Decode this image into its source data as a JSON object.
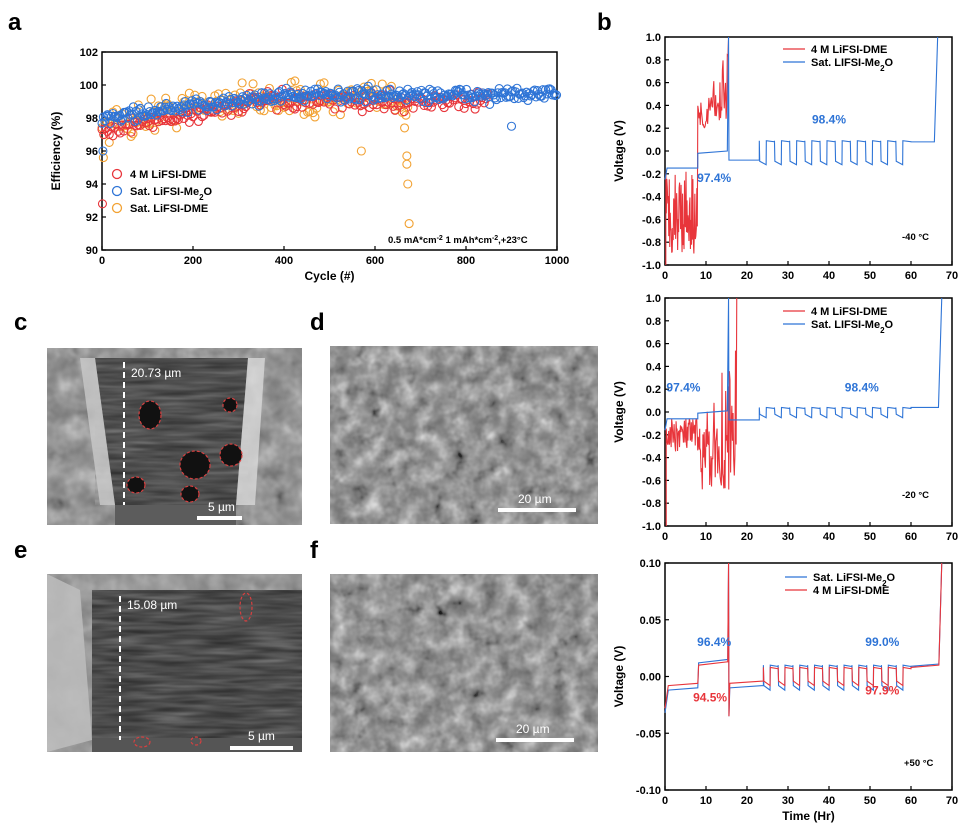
{
  "colors": {
    "red": "#e8353b",
    "blue": "#2e74d6",
    "orange": "#f2a233",
    "ann_blue": "#2e74d6",
    "ann_red": "#e8353b"
  },
  "panel_labels": [
    "a",
    "b",
    "c",
    "d",
    "e",
    "f"
  ],
  "sem": {
    "c": {
      "depth": "20.73 µm",
      "scale": "5 µm"
    },
    "d": {
      "scale": "20 µm"
    },
    "e": {
      "depth": "15.08 µm",
      "scale": "5 µm"
    },
    "f": {
      "scale": "20 µm"
    }
  },
  "chart_data": [
    {
      "id": "a",
      "type": "scatter",
      "xlabel": "Cycle (#)",
      "ylabel": "Efficiency (%)",
      "xlim": [
        0,
        1000
      ],
      "ylim": [
        90,
        102
      ],
      "xticks": [
        "0",
        "200",
        "400",
        "600",
        "800",
        "1000"
      ],
      "yticks": [
        "90",
        "92",
        "94",
        "96",
        "98",
        "100",
        "102"
      ],
      "condition_text": "0.5 mA*cm-2 1 mAh*cm-2,+23°C",
      "legend": [
        "4 M LiFSI-DME",
        "Sat. LiFSI-Me2O",
        "Sat. LiFSI-DME"
      ],
      "series": [
        {
          "name": "4 M LiFSI-DME",
          "color": "#e8353b",
          "cycles": [
            0,
            850
          ],
          "mean_start": 97.2,
          "mean_end": 99.0,
          "outliers": [
            [
              1,
              92.8
            ]
          ]
        },
        {
          "name": "Sat. LiFSI-Me2O",
          "color": "#2e74d6",
          "cycles": [
            0,
            1000
          ],
          "mean_start": 98.0,
          "mean_end": 99.4,
          "outliers": [
            [
              2,
              96.0
            ],
            [
              900,
              97.5
            ]
          ]
        },
        {
          "name": "Sat. LiFSI-DME",
          "color": "#f2a233",
          "cycles": [
            0,
            675
          ],
          "mean_start": 97.5,
          "mean_end": 99.1,
          "outliers": [
            [
              3,
              95.6
            ],
            [
              570,
              96.0
            ],
            [
              670,
              95.7
            ],
            [
              670,
              95.2
            ],
            [
              672,
              94.0
            ],
            [
              675,
              91.6
            ],
            [
              665,
              97.4
            ]
          ]
        }
      ]
    },
    {
      "id": "b1",
      "type": "line",
      "ylabel": "Voltage (V)",
      "xlim": [
        0,
        70
      ],
      "ylim": [
        -1.0,
        1.0
      ],
      "xticks": [
        "0",
        "10",
        "20",
        "30",
        "40",
        "50",
        "60",
        "70"
      ],
      "yticks": [
        "-1.0",
        "-0.8",
        "-0.6",
        "-0.4",
        "-0.2",
        "0.0",
        "0.2",
        "0.4",
        "0.6",
        "0.8",
        "1.0"
      ],
      "legend": [
        "4 M LiFSI-DME",
        "Sat. LIFSI-Me2O"
      ],
      "temperature": "-40 °C",
      "annotations": [
        {
          "text": "97.4%",
          "x": 12.0,
          "y": -0.27,
          "color": "#2e74d6"
        },
        {
          "text": "98.4%",
          "x": 40.0,
          "y": 0.24,
          "color": "#2e74d6"
        }
      ],
      "series": [
        {
          "name": "4 M LiFSI-DME",
          "color": "#e8353b",
          "plating_x": [
            0.2,
            8.0
          ],
          "plating_v_range": [
            -0.9,
            -0.15
          ],
          "stripping_x": [
            8.0,
            15.5
          ],
          "stripping_v_range": [
            0.2,
            1.0
          ]
        },
        {
          "name": "Sat. LIFSI-Me2O",
          "color": "#2e74d6",
          "plating_v": -0.15,
          "plating_x": [
            0,
            8
          ],
          "stripping_v": -0.02,
          "stripping_x": [
            8,
            15.5
          ],
          "cycling_x": [
            23,
            60
          ],
          "cycling_v": [
            -0.12,
            0.09
          ],
          "cycles": 10,
          "final_v": 0.08,
          "rise_x": 66.5
        }
      ]
    },
    {
      "id": "b2",
      "type": "line",
      "ylabel": "Voltage (V)",
      "xlim": [
        0,
        70
      ],
      "ylim": [
        -1.0,
        1.0
      ],
      "xticks": [
        "0",
        "10",
        "20",
        "30",
        "40",
        "50",
        "60",
        "70"
      ],
      "yticks": [
        "-1.0",
        "-0.8",
        "-0.6",
        "-0.4",
        "-0.2",
        "0.0",
        "0.2",
        "0.4",
        "0.6",
        "0.8",
        "1.0"
      ],
      "legend": [
        "4 M LiFSI-DME",
        "Sat. LIFSI-Me2O"
      ],
      "temperature": "-20 °C",
      "annotations": [
        {
          "text": "97.4%",
          "x": 4.5,
          "y": 0.18,
          "color": "#2e74d6"
        },
        {
          "text": "98.4%",
          "x": 48.0,
          "y": 0.18,
          "color": "#2e74d6"
        }
      ],
      "series": [
        {
          "name": "4 M LiFSI-DME",
          "color": "#e8353b",
          "plating_x": [
            0.3,
            8.5
          ],
          "plating_v_range": [
            -0.35,
            -0.05
          ],
          "stripping_x": [
            8.5,
            17.5
          ],
          "stripping_v_range": [
            -0.7,
            1.0
          ]
        },
        {
          "name": "Sat. LIFSI-Me2O",
          "color": "#2e74d6",
          "plating_v": -0.06,
          "plating_x": [
            0,
            8
          ],
          "stripping_v": -0.01,
          "stripping_x": [
            8,
            15.5
          ],
          "cycling_x": [
            23,
            60
          ],
          "cycling_v": [
            -0.05,
            0.04
          ],
          "cycles": 10,
          "final_v": 0.04,
          "rise_x": 67.5
        }
      ]
    },
    {
      "id": "b3",
      "type": "line",
      "xlabel": "Time (Hr)",
      "ylabel": "Voltage (V)",
      "xlim": [
        0,
        70
      ],
      "ylim": [
        -0.1,
        0.1
      ],
      "xticks": [
        "0",
        "10",
        "20",
        "30",
        "40",
        "50",
        "60",
        "70"
      ],
      "yticks": [
        "-0.10",
        "-0.05",
        "0.00",
        "0.05",
        "0.10"
      ],
      "legend": [
        "Sat. LiFSI-Me2O",
        "4 M LiFSI-DME"
      ],
      "temperature": "+50 °C",
      "annotations": [
        {
          "text": "96.4%",
          "x": 12.0,
          "y": 0.027,
          "color": "#2e74d6"
        },
        {
          "text": "94.5%",
          "x": 11.0,
          "y": -0.022,
          "color": "#e8353b"
        },
        {
          "text": "99.0%",
          "x": 53.0,
          "y": 0.027,
          "color": "#2e74d6"
        },
        {
          "text": "97.9%",
          "x": 53.0,
          "y": -0.016,
          "color": "#e8353b"
        }
      ],
      "series": [
        {
          "name": "Sat. LiFSI-Me2O",
          "color": "#2e74d6",
          "plating_v": -0.012,
          "stripping_v": 0.012,
          "cycling_v": [
            -0.012,
            0.01
          ],
          "cycles": 10,
          "final_v": 0.009
        },
        {
          "name": "4 M LiFSI-DME",
          "color": "#e8353b",
          "plating_v": -0.008,
          "stripping_v": 0.01,
          "cycling_v": [
            -0.008,
            0.008
          ],
          "cycles": 10,
          "final_v": 0.008
        }
      ]
    }
  ]
}
